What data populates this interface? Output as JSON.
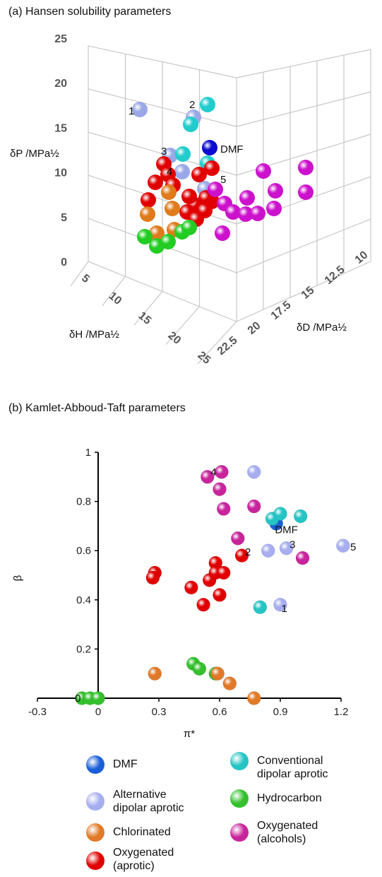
{
  "panel_a": {
    "title": "(a) Hansen solubility parameters"
  },
  "panel_b": {
    "title": "(b) Kamlet-Abboud-Taft parameters"
  },
  "chart_data": [
    {
      "type": "scatter",
      "title": "(a) Hansen solubility parameters",
      "subtype": "3d-scatter",
      "axes": {
        "z": {
          "label": "δP /MPa½",
          "ticks": [
            "0",
            "5",
            "10",
            "15",
            "20",
            "25"
          ],
          "range": [
            0,
            25
          ]
        },
        "x": {
          "label": "δH /MPa½",
          "ticks": [
            "5",
            "10",
            "15",
            "20",
            "25"
          ],
          "range": [
            5,
            25
          ]
        },
        "y": {
          "label": "δD /MPa½",
          "ticks": [
            "10",
            "12.5",
            "15",
            "17.5",
            "20",
            "22.5"
          ],
          "range": [
            10,
            22.5
          ]
        }
      },
      "point_labels": [
        "1",
        "2",
        "3",
        "4",
        "5",
        "DMF"
      ],
      "grid": true,
      "series_colors": {
        "DMF": "#0a0ad0",
        "Alternative dipolar aprotic": "#9aa8e8",
        "Conventional dipolar aprotic": "#22cccc",
        "Hydrocarbon": "#22cc22",
        "Chlorinated": "#e07a1a",
        "Oxygenated (aprotic)": "#e00000",
        "Oxygenated (alcohols)": "#cc11cc"
      }
    },
    {
      "type": "scatter",
      "title": "(b) Kamlet-Abboud-Taft parameters",
      "xlabel": "π*",
      "ylabel": "β",
      "xlim": [
        -0.3,
        1.2
      ],
      "ylim": [
        0,
        1
      ],
      "xticks": [
        "-0.3",
        "0",
        "0.3",
        "0.6",
        "0.9",
        "1.2"
      ],
      "yticks": [
        "0",
        "0.2",
        "0.4",
        "0.6",
        "0.8",
        "1"
      ],
      "series": [
        {
          "name": "DMF",
          "color": "#1a5fd6",
          "points": [
            [
              0.88,
              0.71
            ]
          ]
        },
        {
          "name": "Alternative dipolar aprotic",
          "color": "#a7aef0",
          "points": [
            [
              0.9,
              0.38
            ],
            [
              0.84,
              0.6
            ],
            [
              0.93,
              0.61
            ],
            [
              0.61,
              0.92
            ],
            [
              1.21,
              0.62
            ],
            [
              0.77,
              0.92
            ]
          ]
        },
        {
          "name": "Conventional dipolar aprotic",
          "color": "#26c4c4",
          "points": [
            [
              0.8,
              0.37
            ],
            [
              0.86,
              0.73
            ],
            [
              0.9,
              0.75
            ],
            [
              1.0,
              0.74
            ]
          ]
        },
        {
          "name": "Hydrocarbon",
          "color": "#33c02c",
          "points": [
            [
              -0.08,
              0.0
            ],
            [
              -0.04,
              0.0
            ],
            [
              0.0,
              0.0
            ],
            [
              0.47,
              0.14
            ],
            [
              0.5,
              0.12
            ],
            [
              0.58,
              0.1
            ]
          ]
        },
        {
          "name": "Chlorinated",
          "color": "#e07a28",
          "points": [
            [
              0.28,
              0.1
            ],
            [
              0.59,
              0.1
            ],
            [
              0.65,
              0.06
            ],
            [
              0.77,
              0.0
            ]
          ]
        },
        {
          "name": "Oxygenated (aprotic)",
          "color": "#e00000",
          "points": [
            [
              0.28,
              0.51
            ],
            [
              0.27,
              0.49
            ],
            [
              0.46,
              0.45
            ],
            [
              0.52,
              0.38
            ],
            [
              0.55,
              0.48
            ],
            [
              0.58,
              0.55
            ],
            [
              0.6,
              0.42
            ],
            [
              0.58,
              0.51
            ],
            [
              0.62,
              0.51
            ],
            [
              0.71,
              0.58
            ]
          ]
        },
        {
          "name": "Oxygenated (alcohols)",
          "color": "#c8259c",
          "points": [
            [
              0.54,
              0.9
            ],
            [
              0.6,
              0.85
            ],
            [
              0.61,
              0.92
            ],
            [
              0.62,
              0.77
            ],
            [
              0.77,
              0.78
            ],
            [
              0.69,
              0.65
            ],
            [
              1.01,
              0.57
            ]
          ]
        }
      ],
      "annotations": [
        {
          "text": "4",
          "x": 0.57,
          "y": 0.92
        },
        {
          "text": "DMF",
          "x": 0.93,
          "y": 0.685
        },
        {
          "text": "2",
          "x": 0.74,
          "y": 0.595
        },
        {
          "text": "3",
          "x": 0.96,
          "y": 0.625
        },
        {
          "text": "5",
          "x": 1.26,
          "y": 0.615
        },
        {
          "text": "1",
          "x": 0.92,
          "y": 0.365
        },
        {
          "text": "0",
          "x": -0.1,
          "y": 0.0
        }
      ]
    }
  ],
  "legend": [
    {
      "label": "DMF",
      "color": "#1a5fd6"
    },
    {
      "label": "Conventional\ndipolar aprotic",
      "color": "#26c4c4"
    },
    {
      "label": "Alternative\ndipolar aprotic",
      "color": "#a7aef0"
    },
    {
      "label": "Hydrocarbon",
      "color": "#33c02c"
    },
    {
      "label": "Chlorinated",
      "color": "#e07a28"
    },
    {
      "label": "Oxygenated\n(alcohols)",
      "color": "#c8259c"
    },
    {
      "label": "Oxygenated\n(aprotic)",
      "color": "#e00000"
    }
  ]
}
